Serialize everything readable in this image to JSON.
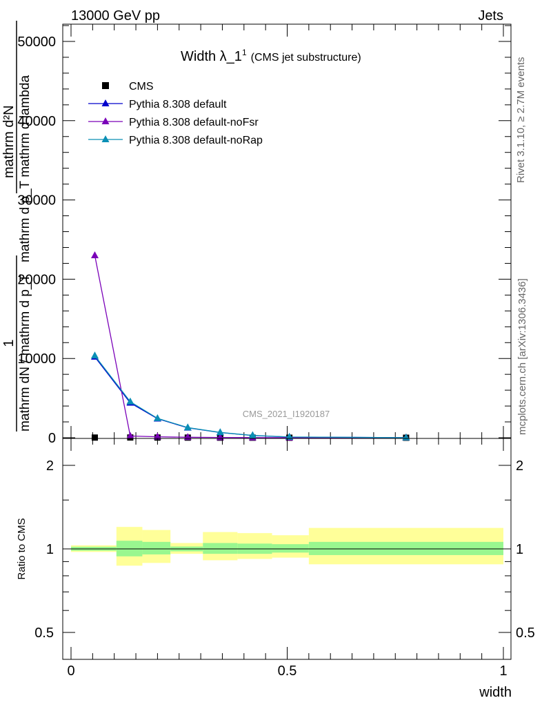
{
  "header": {
    "energy": "13000 GeV pp",
    "category": "Jets"
  },
  "side": {
    "rivet": "Rivet 3.1.10, ≥ 2.7M events",
    "mcplots": "mcplots.cern.ch [arXiv:1306.3436]"
  },
  "chart_data": [
    {
      "type": "line",
      "title": "Width λ_1",
      "title_sup": "1",
      "subtitle": "(CMS jet substructure)",
      "analysis_label": "CMS_2021_I1920187",
      "ylabel_numerator": "mathrm d²N",
      "ylabel_denominator": "mathrm d p_T mathrm d lambda",
      "ylabel_prefix_numerator": "1",
      "ylabel_prefix_denominator": "mathrm dN / mathrm d p_T",
      "ylim": [
        0,
        52000
      ],
      "xlim": [
        0,
        1
      ],
      "y_ticks": [
        {
          "value": 0,
          "label": "0"
        },
        {
          "value": 10000,
          "label": "10000"
        },
        {
          "value": 20000,
          "label": "20000"
        },
        {
          "value": 30000,
          "label": "30000"
        },
        {
          "value": 40000,
          "label": "40000"
        },
        {
          "value": 50000,
          "label": "50000"
        }
      ],
      "legend_placement": "top-left",
      "series": [
        {
          "name": "CMS",
          "kind": "data",
          "color": "#000000",
          "x": [
            0.055,
            0.137,
            0.2,
            0.27,
            0.345,
            0.42,
            0.505,
            0.775
          ],
          "values": [
            20,
            30,
            25,
            15,
            10,
            6,
            3,
            1
          ]
        },
        {
          "name": "Pythia 8.308 default",
          "kind": "mc",
          "color": "#0000cc",
          "x": [
            0.055,
            0.137,
            0.2,
            0.27,
            0.345,
            0.42,
            0.505,
            0.775
          ],
          "values": [
            10200,
            4400,
            2400,
            1250,
            650,
            280,
            90,
            10
          ]
        },
        {
          "name": "Pythia 8.308 default-noFsr",
          "kind": "mc",
          "color": "#7a00b8",
          "x": [
            0.055,
            0.137,
            0.2,
            0.27,
            0.345,
            0.42,
            0.505,
            0.775
          ],
          "values": [
            23000,
            220,
            120,
            60,
            30,
            15,
            5,
            1
          ]
        },
        {
          "name": "Pythia 8.308 default-noRap",
          "kind": "mc",
          "color": "#0a8fb5",
          "x": [
            0.055,
            0.137,
            0.2,
            0.27,
            0.345,
            0.42,
            0.505,
            0.775
          ],
          "values": [
            10350,
            4550,
            2450,
            1280,
            670,
            290,
            95,
            10
          ]
        }
      ]
    },
    {
      "type": "area",
      "ylabel": "Ratio to CMS",
      "xlabel": "width",
      "xlim": [
        0,
        1
      ],
      "ylim": [
        0.35,
        2.3
      ],
      "y_scale": "log",
      "y_ticks": [
        {
          "value": 0.5,
          "label": "0.5"
        },
        {
          "value": 1,
          "label": "1"
        },
        {
          "value": 2,
          "label": "2"
        }
      ],
      "x_ticks": [
        {
          "value": 0,
          "label": "0"
        },
        {
          "value": 0.5,
          "label": "0.5"
        },
        {
          "value": 1,
          "label": "1"
        }
      ],
      "band_colors": {
        "inner": "#99f78f",
        "outer": "#ffff99",
        "line": "#000000"
      },
      "bins": [
        {
          "lo": 0.0,
          "hi": 0.105,
          "inner": [
            0.985,
            1.018
          ],
          "outer": [
            0.975,
            1.03
          ]
        },
        {
          "lo": 0.105,
          "hi": 0.165,
          "inner": [
            0.94,
            1.07
          ],
          "outer": [
            0.87,
            1.2
          ]
        },
        {
          "lo": 0.165,
          "hi": 0.23,
          "inner": [
            0.955,
            1.06
          ],
          "outer": [
            0.89,
            1.17
          ]
        },
        {
          "lo": 0.23,
          "hi": 0.305,
          "inner": [
            0.98,
            1.02
          ],
          "outer": [
            0.96,
            1.05
          ]
        },
        {
          "lo": 0.305,
          "hi": 0.385,
          "inner": [
            0.96,
            1.05
          ],
          "outer": [
            0.91,
            1.15
          ]
        },
        {
          "lo": 0.385,
          "hi": 0.465,
          "inner": [
            0.96,
            1.045
          ],
          "outer": [
            0.92,
            1.14
          ]
        },
        {
          "lo": 0.465,
          "hi": 0.55,
          "inner": [
            0.97,
            1.04
          ],
          "outer": [
            0.93,
            1.12
          ]
        },
        {
          "lo": 0.55,
          "hi": 1.0,
          "inner": [
            0.95,
            1.06
          ],
          "outer": [
            0.88,
            1.19
          ]
        }
      ]
    }
  ]
}
